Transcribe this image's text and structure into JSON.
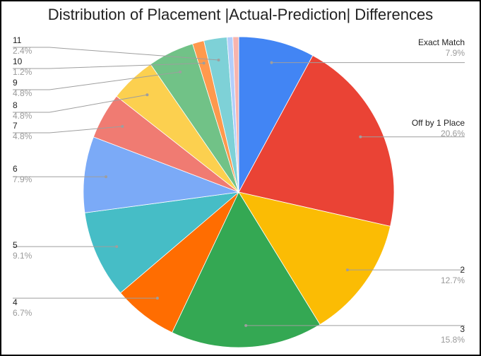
{
  "chart_data": {
    "type": "pie",
    "title": "Distribution of Placement |Actual-Prediction| Differences",
    "slices": [
      {
        "label": "Exact Match",
        "percent_label": "7.9%",
        "value": 7.9,
        "color": "#4285f4"
      },
      {
        "label": "Off by 1 Place",
        "percent_label": "20.6%",
        "value": 20.6,
        "color": "#ea4335"
      },
      {
        "label": "2",
        "percent_label": "12.7%",
        "value": 12.7,
        "color": "#fbbc04"
      },
      {
        "label": "3",
        "percent_label": "15.8%",
        "value": 15.8,
        "color": "#34a853"
      },
      {
        "label": "4",
        "percent_label": "6.7%",
        "value": 6.7,
        "color": "#ff6d01"
      },
      {
        "label": "5",
        "percent_label": "9.1%",
        "value": 9.1,
        "color": "#46bdc6"
      },
      {
        "label": "6",
        "percent_label": "7.9%",
        "value": 7.9,
        "color": "#7baaf7"
      },
      {
        "label": "7",
        "percent_label": "4.8%",
        "value": 4.8,
        "color": "#f07b72"
      },
      {
        "label": "8",
        "percent_label": "4.8%",
        "value": 4.8,
        "color": "#fcd04f"
      },
      {
        "label": "9",
        "percent_label": "4.8%",
        "value": 4.8,
        "color": "#71c287"
      },
      {
        "label": "10",
        "percent_label": "1.2%",
        "value": 1.2,
        "color": "#ff994d"
      },
      {
        "label": "11",
        "percent_label": "2.4%",
        "value": 2.4,
        "color": "#7ed1d7"
      },
      {
        "label": "",
        "percent_label": "",
        "value": 0.6,
        "color": "#b3cefb"
      },
      {
        "label": "",
        "percent_label": "",
        "value": 0.6,
        "color": "#f7b4ae"
      }
    ]
  }
}
